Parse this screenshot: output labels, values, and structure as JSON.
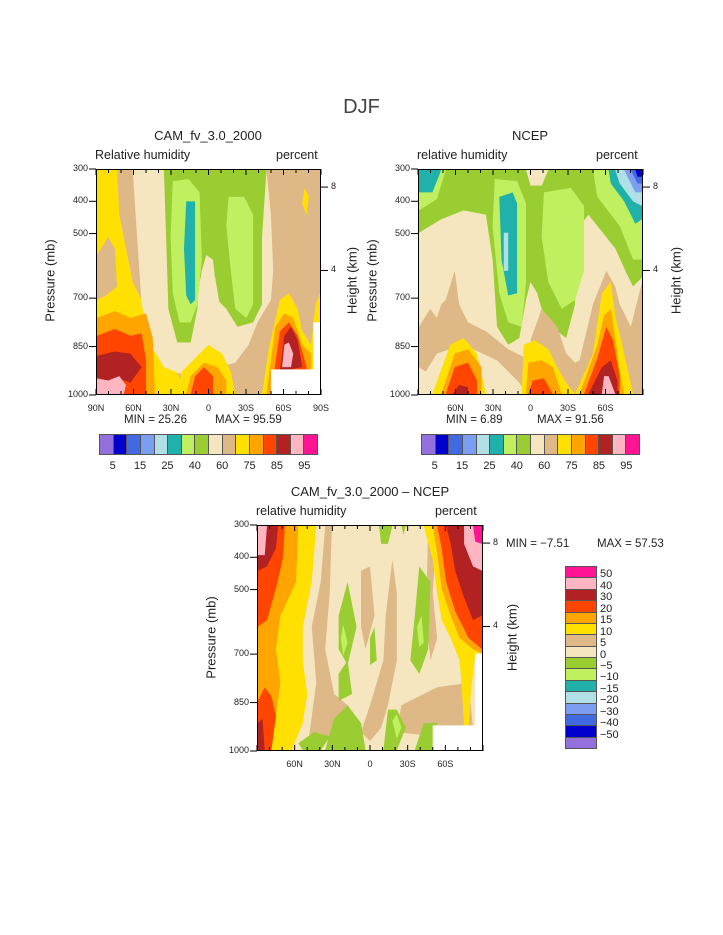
{
  "title": "DJF",
  "colors": [
    "#9370DB",
    "#0000CD",
    "#4169E1",
    "#7B9EF0",
    "#B0E0E6",
    "#20B2AA",
    "#C0F060",
    "#9ACD32",
    "#F5E6C0",
    "#DEB887",
    "#FFE000",
    "#FFA500",
    "#FF4500",
    "#B22222",
    "#FFB6C1",
    "#FF1493"
  ],
  "chart_data": [
    {
      "type": "heatmap",
      "title": "CAM_fv_3.0_2000",
      "left_label": "Relative humidity",
      "right_label": "percent",
      "ylabel": "Pressure (mb)",
      "ylabel_right": "Height (km)",
      "yticks": [
        "300",
        "400",
        "500",
        "700",
        "850",
        "1000"
      ],
      "yticks_right": [
        "8",
        "4"
      ],
      "xticks": [
        "90N",
        "60N",
        "30N",
        "0",
        "30S",
        "60S",
        "90S"
      ],
      "ylim": [
        1000,
        300
      ],
      "min_text": "MIN =   25.26",
      "max_text": "MAX =   95.59",
      "colorbar_labels": [
        "5",
        "15",
        "25",
        "40",
        "60",
        "75",
        "85",
        "95"
      ]
    },
    {
      "type": "heatmap",
      "title": "NCEP",
      "left_label": "relative humidity",
      "right_label": "percent",
      "ylabel": "Pressure (mb)",
      "ylabel_right": "Height (km)",
      "yticks": [
        "300",
        "400",
        "500",
        "700",
        "850",
        "1000"
      ],
      "yticks_right": [
        "8",
        "4"
      ],
      "xticks": [
        "60N",
        "30N",
        "0",
        "30S",
        "60S"
      ],
      "ylim": [
        1000,
        300
      ],
      "min_text": "MIN =    6.89",
      "max_text": "MAX =   91.56",
      "colorbar_labels": [
        "5",
        "15",
        "25",
        "40",
        "60",
        "75",
        "85",
        "95"
      ]
    },
    {
      "type": "heatmap",
      "title": "CAM_fv_3.0_2000 – NCEP",
      "left_label": "relative humidity",
      "right_label": "percent",
      "ylabel": "Pressure (mb)",
      "ylabel_right": "Height (km)",
      "yticks": [
        "300",
        "400",
        "500",
        "700",
        "850",
        "1000"
      ],
      "yticks_right": [
        "8",
        "4"
      ],
      "xticks": [
        "60N",
        "30N",
        "0",
        "30S",
        "60S"
      ],
      "ylim": [
        1000,
        300
      ],
      "min_text": "MIN =   −7.51",
      "max_text": "MAX =   57.53",
      "colorbar_labels": [
        "50",
        "40",
        "30",
        "20",
        "15",
        "10",
        "5",
        "0",
        "−5",
        "−10",
        "−15",
        "−20",
        "−30",
        "−40",
        "−50"
      ]
    }
  ]
}
